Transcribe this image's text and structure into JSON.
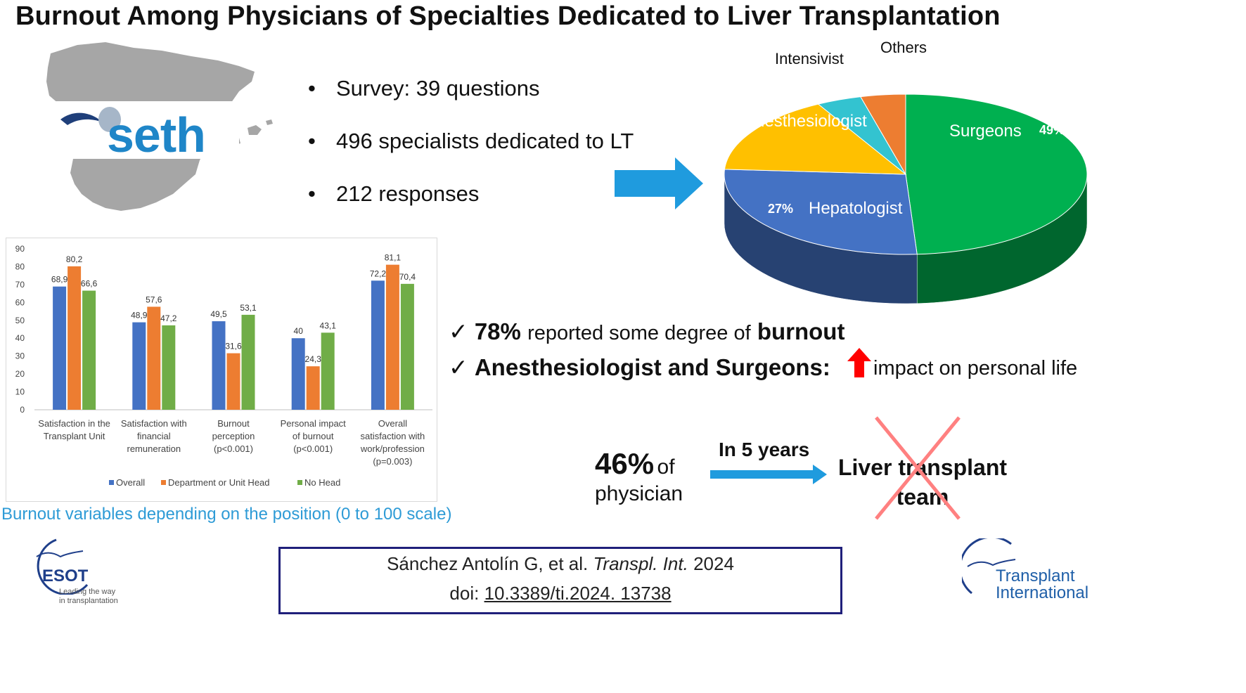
{
  "title": "Burnout Among Physicians of Specialties Dedicated to Liver Transplantation",
  "logo_text": "seth",
  "survey_bullets": [
    "Survey: 39 questions",
    "496 specialists dedicated to LT",
    "212 responses"
  ],
  "colors": {
    "overall": "#4472c4",
    "department_head": "#ed7d31",
    "no_head": "#70ad47",
    "arrow": "#1f9bde",
    "surgeons": "#00b050",
    "hepatologist": "#4472c4",
    "anesthesiologist": "#ffc000",
    "intensivist": "#33c3d0",
    "others": "#ed7d31",
    "cross": "#ff8080"
  },
  "pie_chart": {
    "type": "pie",
    "slices": [
      {
        "label": "Surgeons",
        "value": 49,
        "value_label": "49%"
      },
      {
        "label": "Hepatologist",
        "value": 27,
        "value_label": "27%"
      },
      {
        "label": "Anesthesiologist",
        "value": 16,
        "value_label": "16%"
      },
      {
        "label": "Intensivist",
        "value": 4,
        "value_label": "4%"
      },
      {
        "label": "Others",
        "value": 4,
        "value_label": "4%"
      }
    ]
  },
  "chart_data": {
    "type": "bar",
    "categories": [
      [
        "Satisfaction in the",
        "Transplant Unit"
      ],
      [
        "Satisfaction with",
        "financial",
        "remuneration"
      ],
      [
        "Burnout",
        "perception",
        "(p<0.001)"
      ],
      [
        "Personal impact",
        "of burnout",
        "(p<0.001)"
      ],
      [
        "Overall",
        "satisfaction with",
        "work/profession",
        "(p=0.003)"
      ]
    ],
    "series": [
      {
        "name": "Overall",
        "values": [
          68.9,
          48.9,
          49.5,
          40,
          72.2
        ],
        "labels": [
          "68,9",
          "48,9",
          "49,5",
          "40",
          "72,2"
        ]
      },
      {
        "name": "Department or Unit Head",
        "values": [
          80.2,
          57.6,
          31.6,
          24.3,
          81.1
        ],
        "labels": [
          "80,2",
          "57,6",
          "31,6",
          "24,3",
          "81,1"
        ]
      },
      {
        "name": "No Head",
        "values": [
          66.6,
          47.2,
          53.1,
          43.1,
          70.4
        ],
        "labels": [
          "66,6",
          "47,2",
          "53,1",
          "43,1",
          "70,4"
        ]
      }
    ],
    "yticks": [
      0,
      10,
      20,
      30,
      40,
      50,
      60,
      70,
      80,
      90
    ],
    "ylim": [
      0,
      90
    ],
    "legend": "bottom",
    "grid": false
  },
  "chart_caption": "Burnout variables depending on the position (0 to 100 scale)",
  "findings": {
    "line1_a": "78%",
    "line1_b": "reported some degree of",
    "line1_c": "burnout",
    "line2_a": "Anesthesiologist and Surgeons:",
    "line2_b": "impact on personal life"
  },
  "projection": {
    "percent": "46%",
    "of": "of",
    "who": "physician",
    "timeframe": "In 5 years",
    "team_line1": "Liver transplant",
    "team_line2": "team"
  },
  "citation": {
    "authors": "Sánchez Antolín G, et al.",
    "journal": "Transpl. Int.",
    "year": "2024",
    "doi_prefix": "doi:",
    "doi": "10.3389/ti.2024. 13738"
  },
  "esot": {
    "name": "ESOT",
    "tagline_1": "Leading the way",
    "tagline_2": "in transplantation"
  },
  "journal_logo": {
    "line1": "Transplant",
    "line2": "International"
  }
}
